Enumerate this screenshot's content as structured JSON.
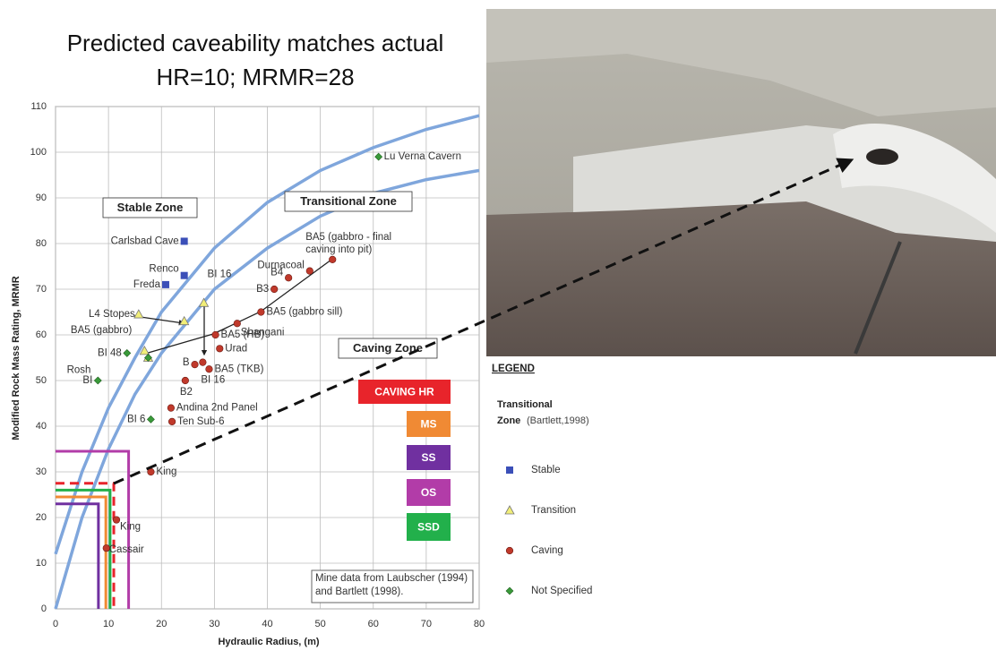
{
  "chart_data": {
    "type": "scatter",
    "title": "Predicted caveability matches actual",
    "subtitle": "HR=10; MRMR=28",
    "xlabel": "Hydraulic Radius, (m)",
    "ylabel": "Modified Rock Mass Rating, MRMR",
    "xlim": [
      0,
      80
    ],
    "ylim": [
      0,
      110
    ],
    "xticks": [
      0,
      10,
      20,
      30,
      40,
      50,
      60,
      70,
      80
    ],
    "yticks": [
      0,
      10,
      20,
      30,
      40,
      50,
      60,
      70,
      80,
      90,
      100,
      110
    ],
    "grid": true,
    "series": [
      {
        "name": "Stable",
        "color": "#3b4fb8",
        "marker": "square",
        "x": [
          24.3,
          24.3,
          20.8
        ],
        "values": [
          80.5,
          73,
          71
        ],
        "labels": [
          "Carlsbad Cave",
          "Renco",
          "Freda"
        ]
      },
      {
        "name": "Transition",
        "color": "#f1ee78",
        "marker": "triangle",
        "x": [
          15.7,
          24.3,
          28,
          16.8,
          17.5
        ],
        "values": [
          64.5,
          63,
          67,
          56.5,
          55
        ],
        "labels": [
          "L4 Stopes",
          null,
          "BI 16",
          "BA5 (gabbro)",
          null
        ]
      },
      {
        "name": "Caving",
        "color": "#c0392b",
        "marker": "circle",
        "x": [
          18,
          11.5,
          9.6,
          21.8,
          22,
          24.5,
          26.3,
          27.8,
          29,
          31,
          30.2,
          34.3,
          38.8,
          41.3,
          44,
          48,
          52.3
        ],
        "values": [
          30,
          19.5,
          13.3,
          44,
          41,
          50,
          53.5,
          54,
          52.5,
          57,
          60,
          62.5,
          65,
          70,
          72.5,
          74,
          76.5
        ],
        "labels": [
          "King",
          "King",
          "Cassair",
          "Andina 2nd Panel",
          "Ten Sub-6",
          "B2",
          "B",
          "BI 16",
          "BA5 (TKB)",
          "Urad",
          "BA5 (HB)",
          "Shangani",
          "BA5 (gabbro sill)",
          "B3",
          "B4",
          "Durnacoal",
          "BA5 (gabbro - final caving into pit)"
        ]
      },
      {
        "name": "Not Specified",
        "color": "#3a9a3a",
        "marker": "diamond",
        "x": [
          61,
          13.5,
          8,
          18,
          17.5
        ],
        "values": [
          99,
          56,
          50,
          41.5,
          55
        ],
        "labels": [
          "Lu Verna Cavern",
          "BI 48",
          "BI",
          "BI 6",
          "Rosh"
        ]
      }
    ],
    "curves": [
      {
        "color": "#7fa6dc",
        "x": [
          0,
          5,
          10,
          15,
          20,
          30,
          40,
          50,
          60,
          70,
          80
        ],
        "values": [
          0,
          20,
          35,
          47,
          56,
          70,
          79,
          86,
          91,
          94,
          96
        ]
      },
      {
        "color": "#7fa6dc",
        "x": [
          0,
          5,
          10,
          15,
          20,
          30,
          40,
          50,
          60,
          70,
          80
        ],
        "values": [
          12,
          30,
          44,
          55,
          65,
          79,
          89,
          96,
          101,
          105,
          108
        ]
      }
    ],
    "zone_labels": [
      "Stable Zone",
      "Transitional Zone",
      "Caving Zone"
    ],
    "annotation": "Mine data from Laubscher (1994) and Bartlett (1998).",
    "limits": [
      {
        "name": "CAVING HR",
        "color": "#e8242b",
        "hr": 11,
        "mrmr": 27.5
      },
      {
        "name": "MS",
        "color": "#f08a34",
        "hr": 9.5,
        "mrmr": 24.5
      },
      {
        "name": "SS",
        "color": "#7030a0",
        "hr": 8.1,
        "mrmr": 23
      },
      {
        "name": "OS",
        "color": "#b23ca8",
        "hr": 13.8,
        "mrmr": 34.5
      },
      {
        "name": "SSD",
        "color": "#22b04b",
        "hr": 10.3,
        "mrmr": 26
      }
    ],
    "legend": {
      "title": "LEGEND",
      "heading": "Transitional",
      "heading_zone": "Zone",
      "heading_source": "(Bartlett,1998)"
    }
  }
}
